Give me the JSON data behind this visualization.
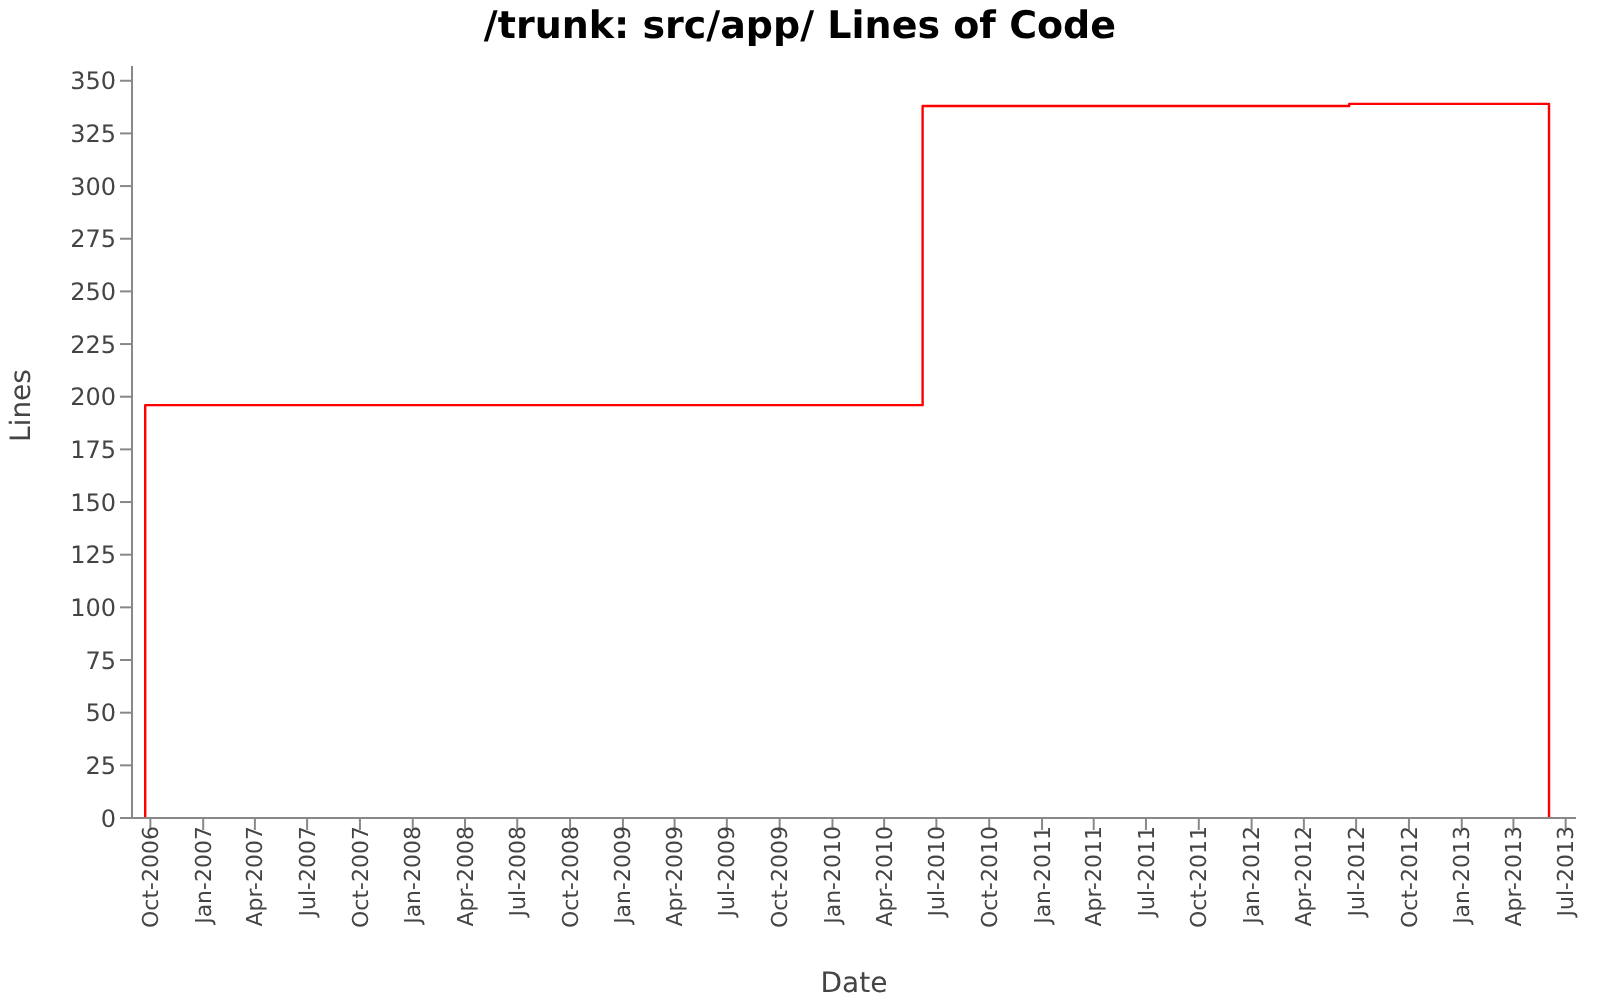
{
  "chart_data": {
    "type": "step",
    "title": "/trunk: src/app/ Lines of Code",
    "xlabel": "Date",
    "ylabel": "Lines",
    "x": [
      "2006-09-22",
      "2006-09-22",
      "2010-06-07",
      "2012-06-19",
      "2013-06-02"
    ],
    "series": [
      {
        "color": "#ff0000",
        "values": [
          0,
          196,
          338,
          339,
          0
        ]
      }
    ],
    "xlim": [
      "2006-08-30",
      "2013-07-19"
    ],
    "xticks": [
      {
        "value": "2006-10-01",
        "label": "Oct-2006"
      },
      {
        "value": "2007-01-01",
        "label": "Jan-2007"
      },
      {
        "value": "2007-04-01",
        "label": "Apr-2007"
      },
      {
        "value": "2007-07-01",
        "label": "Jul-2007"
      },
      {
        "value": "2007-10-01",
        "label": "Oct-2007"
      },
      {
        "value": "2008-01-01",
        "label": "Jan-2008"
      },
      {
        "value": "2008-04-01",
        "label": "Apr-2008"
      },
      {
        "value": "2008-07-01",
        "label": "Jul-2008"
      },
      {
        "value": "2008-10-01",
        "label": "Oct-2008"
      },
      {
        "value": "2009-01-01",
        "label": "Jan-2009"
      },
      {
        "value": "2009-04-01",
        "label": "Apr-2009"
      },
      {
        "value": "2009-07-01",
        "label": "Jul-2009"
      },
      {
        "value": "2009-10-01",
        "label": "Oct-2009"
      },
      {
        "value": "2010-01-01",
        "label": "Jan-2010"
      },
      {
        "value": "2010-04-01",
        "label": "Apr-2010"
      },
      {
        "value": "2010-07-01",
        "label": "Jul-2010"
      },
      {
        "value": "2010-10-01",
        "label": "Oct-2010"
      },
      {
        "value": "2011-01-01",
        "label": "Jan-2011"
      },
      {
        "value": "2011-04-01",
        "label": "Apr-2011"
      },
      {
        "value": "2011-07-01",
        "label": "Jul-2011"
      },
      {
        "value": "2011-10-01",
        "label": "Oct-2011"
      },
      {
        "value": "2012-01-01",
        "label": "Jan-2012"
      },
      {
        "value": "2012-04-01",
        "label": "Apr-2012"
      },
      {
        "value": "2012-07-01",
        "label": "Jul-2012"
      },
      {
        "value": "2012-10-01",
        "label": "Oct-2012"
      },
      {
        "value": "2013-01-01",
        "label": "Jan-2013"
      },
      {
        "value": "2013-04-01",
        "label": "Apr-2013"
      },
      {
        "value": "2013-07-01",
        "label": "Jul-2013"
      }
    ],
    "ylim": [
      0,
      357
    ],
    "yticks": [
      0,
      25,
      50,
      75,
      100,
      125,
      150,
      175,
      200,
      225,
      250,
      275,
      300,
      325,
      350
    ],
    "grid": false,
    "legend": false,
    "marker": "none",
    "line_style": "solid"
  }
}
